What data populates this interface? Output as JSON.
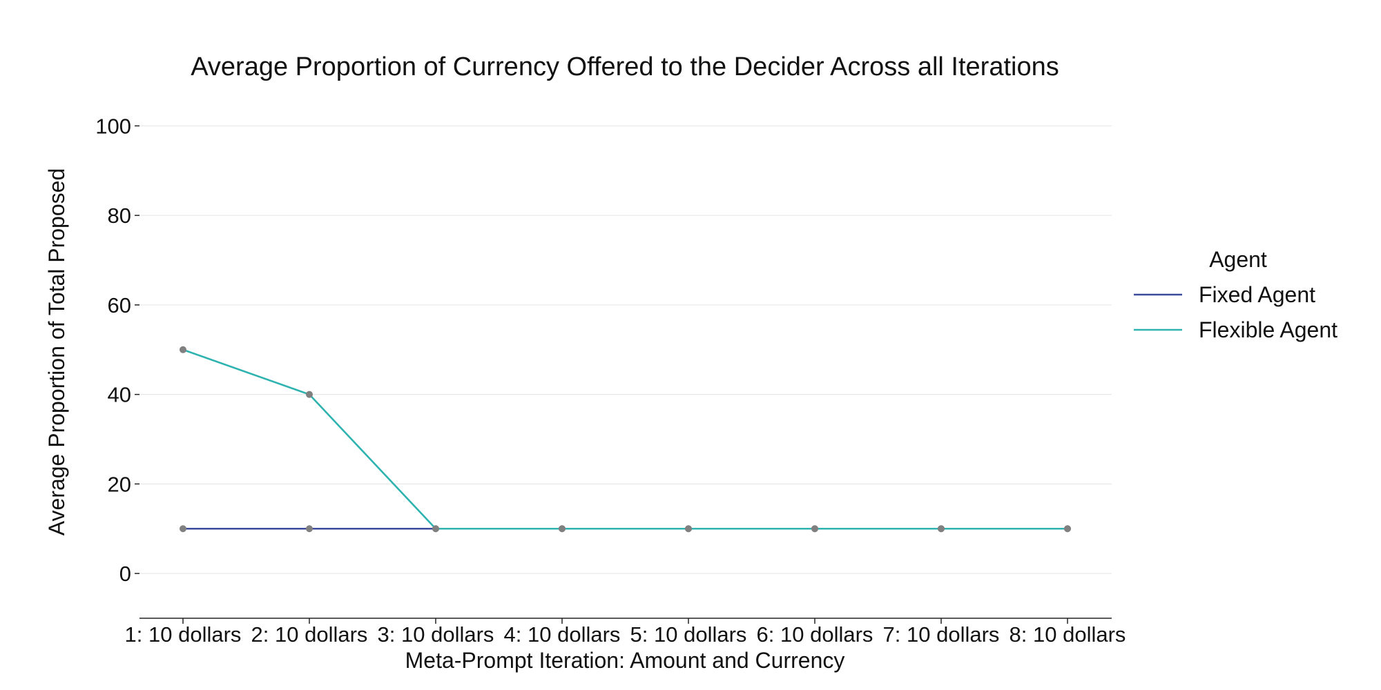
{
  "chart_data": {
    "type": "line",
    "title": "Average Proportion of Currency Offered to the Decider Across all Iterations",
    "xlabel": "Meta-Prompt Iteration: Amount and Currency",
    "ylabel": "Average Proportion of Total Proposed",
    "categories": [
      "1: 10 dollars",
      "2: 10 dollars",
      "3: 10 dollars",
      "4: 10 dollars",
      "5: 10 dollars",
      "6: 10 dollars",
      "7: 10 dollars",
      "8: 10 dollars"
    ],
    "yticks": [
      0,
      20,
      40,
      60,
      80,
      100
    ],
    "ylim": [
      -10,
      105
    ],
    "grid": true,
    "legend": {
      "title": "Agent",
      "placement": "right"
    },
    "series": [
      {
        "name": "Fixed Agent",
        "color": "#3b4a9a",
        "values": [
          10,
          10,
          10,
          10,
          10,
          10,
          10,
          10
        ]
      },
      {
        "name": "Flexible Agent",
        "color": "#2fb3b0",
        "values": [
          50,
          40,
          10,
          10,
          10,
          10,
          10,
          10
        ]
      }
    ],
    "marker_color": "#808080"
  }
}
